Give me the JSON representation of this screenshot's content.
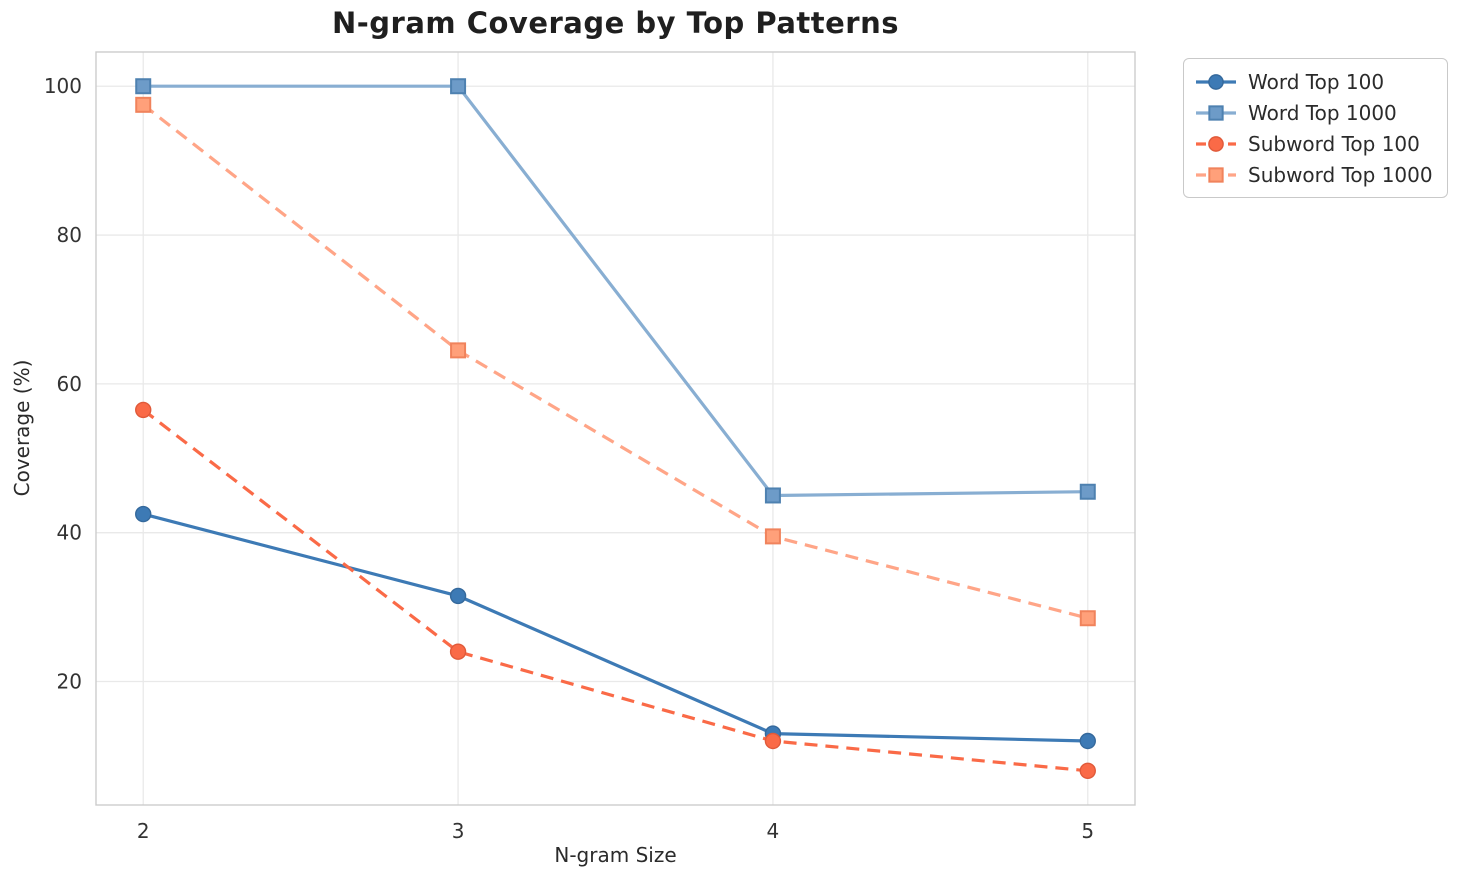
{
  "chart_data": {
    "type": "line",
    "title": "N-gram Coverage by Top Patterns",
    "xlabel": "N-gram Size",
    "ylabel": "Coverage (%)",
    "x": [
      2,
      3,
      4,
      5
    ],
    "xticks": [
      2,
      3,
      4,
      5
    ],
    "yticks": [
      20,
      40,
      60,
      80,
      100
    ],
    "xlim": [
      1.85,
      5.15
    ],
    "ylim": [
      3.4,
      104.6
    ],
    "grid": true,
    "legend_position": "outside-top-right",
    "series": [
      {
        "name": "Word Top 100",
        "values": [
          42.5,
          31.5,
          13,
          12
        ],
        "color": "#3D7AB5",
        "marker": "circle",
        "marker_fill": "#3D7AB5",
        "marker_edge": "#35699C",
        "line_style": "solid"
      },
      {
        "name": "Word Top 1000",
        "values": [
          100,
          100,
          45,
          45.5
        ],
        "color": "#88AED2",
        "marker": "square",
        "marker_fill": "#6D9BC8",
        "marker_edge": "#4E81B0",
        "line_style": "solid"
      },
      {
        "name": "Subword Top 100",
        "values": [
          56.5,
          24,
          12,
          8
        ],
        "color": "#FA6A47",
        "marker": "circle",
        "marker_fill": "#FA6A47",
        "marker_edge": "#E05A3A",
        "line_style": "dashed"
      },
      {
        "name": "Subword Top 1000",
        "values": [
          97.5,
          64.5,
          39.5,
          28.5
        ],
        "color": "#FFA587",
        "marker": "square",
        "marker_fill": "#FFA07A",
        "marker_edge": "#F0835C",
        "line_style": "dashed"
      }
    ]
  }
}
